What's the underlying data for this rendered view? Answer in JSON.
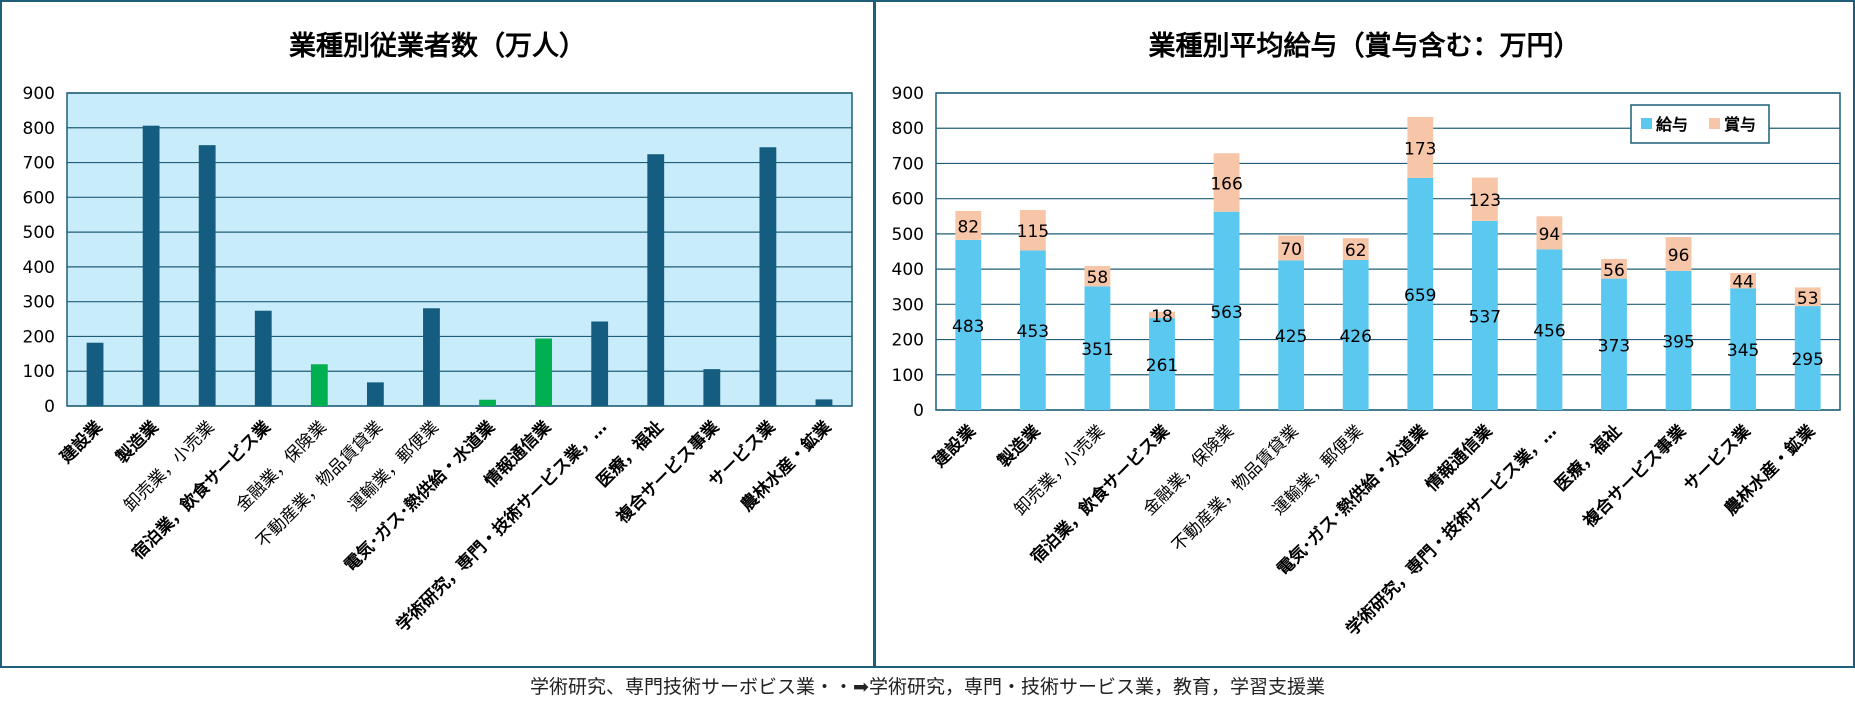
{
  "footnote": "学術研究、専門技術サーボビス業・・➡学術研究，専門・技術サービス業，教育，学習支援業",
  "colors": {
    "frame": "#1f5e78",
    "left_plot_bg": "#c9ecfa",
    "bar_dark": "#155d80",
    "bar_green": "#00b050",
    "salary": "#5bc8f0",
    "bonus": "#f7c6a8"
  },
  "chart_data": [
    {
      "type": "bar",
      "title": "業種別従業者数（万人）",
      "categories": [
        "建設業",
        "製造業",
        "卸売業，小売業",
        "宿泊業，飲食サービス業",
        "金融業，保険業",
        "不動産業，物品賃貸業",
        "運輸業，郵便業",
        "電気･ガス･熱供給・水道業",
        "情報通信業",
        "学術研究，専門・技術サービス業，…",
        "医療，福祉",
        "複合サービス事業",
        "サービス業",
        "農林水産・鉱業"
      ],
      "label_bold": [
        true,
        true,
        false,
        true,
        false,
        false,
        false,
        true,
        true,
        true,
        true,
        true,
        true,
        true
      ],
      "values": [
        182,
        806,
        750,
        274,
        120,
        68,
        281,
        18,
        194,
        243,
        724,
        106,
        744,
        19
      ],
      "bar_colors": [
        "#155d80",
        "#155d80",
        "#155d80",
        "#155d80",
        "#00b050",
        "#155d80",
        "#155d80",
        "#00b050",
        "#00b050",
        "#155d80",
        "#155d80",
        "#155d80",
        "#155d80",
        "#155d80"
      ],
      "ylim": [
        0,
        900
      ],
      "yticks": [
        0,
        100,
        200,
        300,
        400,
        500,
        600,
        700,
        800,
        900
      ],
      "grid": true
    },
    {
      "type": "bar",
      "stacked": true,
      "title": "業種別平均給与（賞与含む：万円）",
      "categories": [
        "建設業",
        "製造業",
        "卸売業，小売業",
        "宿泊業，飲食サービス業",
        "金融業，保険業",
        "不動産業，物品賃貸業",
        "運輸業，郵便業",
        "電気･ガス･熱供給・水道業",
        "情報通信業",
        "学術研究，専門・技術サービス業，…",
        "医療，福祉",
        "複合サービス事業",
        "サービス業",
        "農林水産・鉱業"
      ],
      "label_bold": [
        true,
        true,
        false,
        true,
        false,
        false,
        false,
        true,
        true,
        true,
        true,
        true,
        true,
        true
      ],
      "series": [
        {
          "name": "給与",
          "color": "#5bc8f0",
          "values": [
            483,
            453,
            351,
            261,
            563,
            425,
            426,
            659,
            537,
            456,
            373,
            395,
            345,
            295
          ]
        },
        {
          "name": "賞与",
          "color": "#f7c6a8",
          "values": [
            82,
            115,
            58,
            18,
            166,
            70,
            62,
            173,
            123,
            94,
            56,
            96,
            44,
            53
          ]
        }
      ],
      "ylim": [
        0,
        900
      ],
      "yticks": [
        0,
        100,
        200,
        300,
        400,
        500,
        600,
        700,
        800,
        900
      ],
      "legend_position": "top-right",
      "grid": true
    }
  ]
}
